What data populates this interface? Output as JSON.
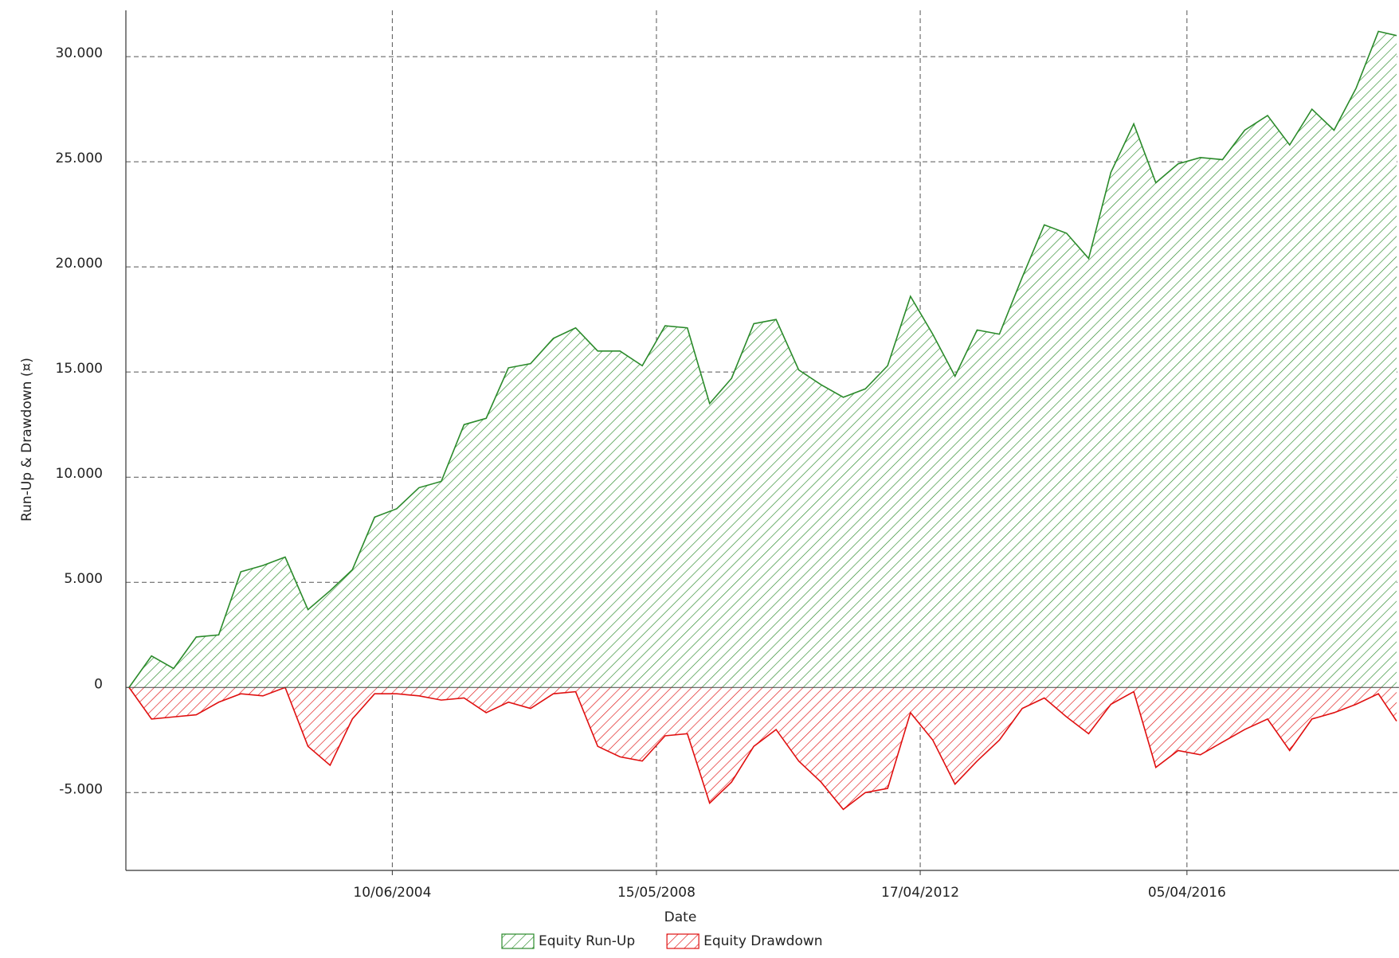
{
  "chart_data": {
    "type": "area",
    "x_label": "Date",
    "y_label": "Run-Up & Drawdown (¤)",
    "x": [
      "11/07/2000",
      "10/11/2000",
      "10/03/2001",
      "11/07/2001",
      "10/11/2001",
      "10/03/2002",
      "08/07/2002",
      "06/11/2002",
      "10/03/2003",
      "08/07/2003",
      "06/11/2003",
      "06/03/2004",
      "04/07/2004",
      "02/11/2004",
      "03/03/2005",
      "05/07/2005",
      "02/11/2005",
      "03/03/2006",
      "01/07/2006",
      "02/11/2006",
      "03/03/2007",
      "01/07/2007",
      "30/10/2007",
      "28/02/2008",
      "01/07/2008",
      "30/10/2008",
      "28/02/2009",
      "27/06/2009",
      "26/10/2009",
      "24/02/2010",
      "27/06/2010",
      "26/10/2010",
      "24/02/2011",
      "24/06/2011",
      "23/10/2011",
      "24/02/2012",
      "24/06/2012",
      "23/10/2012",
      "20/02/2013",
      "21/06/2013",
      "23/10/2013",
      "20/02/2014",
      "21/06/2014",
      "19/10/2014",
      "17/02/2015",
      "21/06/2015",
      "19/10/2015",
      "17/02/2016",
      "17/06/2016",
      "15/10/2016",
      "13/02/2017",
      "17/06/2017",
      "15/10/2017",
      "13/02/2018",
      "13/06/2018",
      "11/10/2018",
      "09/02/2019",
      "19/05/2019"
    ],
    "series": [
      {
        "name": "Equity Run-Up",
        "color": "#2a8a2a",
        "values": [
          0,
          1500,
          900,
          2400,
          2500,
          5500,
          5800,
          6200,
          3700,
          4600,
          5600,
          8100,
          8500,
          9500,
          9800,
          12500,
          12800,
          15200,
          15400,
          16600,
          17100,
          16000,
          16000,
          15300,
          17200,
          17100,
          13500,
          14700,
          17300,
          17500,
          15100,
          14400,
          13800,
          14200,
          15300,
          18600,
          16800,
          14800,
          17000,
          16800,
          19500,
          22000,
          21600,
          20400,
          24500,
          26800,
          24000,
          24900,
          25200,
          25100,
          26500,
          27200,
          25800,
          27500,
          26500,
          28500,
          31200,
          31000
        ]
      },
      {
        "name": "Equity Drawdown",
        "color": "#e01010",
        "values": [
          0,
          -1500,
          -1400,
          -1300,
          -700,
          -300,
          -400,
          0,
          -2800,
          -3700,
          -1500,
          -300,
          -300,
          -400,
          -600,
          -500,
          -1200,
          -700,
          -1000,
          -300,
          -200,
          -2800,
          -3300,
          -3500,
          -2300,
          -2200,
          -5500,
          -4500,
          -2800,
          -2000,
          -3500,
          -4500,
          -5800,
          -5000,
          -4800,
          -1200,
          -2500,
          -4600,
          -3500,
          -2500,
          -1000,
          -500,
          -1400,
          -2200,
          -800,
          -200,
          -3800,
          -3000,
          -3200,
          -2600,
          -2000,
          -1500,
          -3000,
          -1500,
          -1200,
          -800,
          -300,
          -1600
        ]
      }
    ],
    "xlim": [
      "11/07/2000",
      "01/06/2019"
    ],
    "xticks": [
      "10/06/2004",
      "15/05/2008",
      "17/04/2012",
      "05/04/2016"
    ],
    "ylim": [
      -8700,
      32200
    ],
    "yticks": [
      {
        "value": -5000,
        "label": "-5.000"
      },
      0,
      {
        "value": 5000,
        "label": "5.000"
      },
      {
        "value": 10000,
        "label": "10.000"
      },
      {
        "value": 15000,
        "label": "15.000"
      },
      {
        "value": 20000,
        "label": "20.000"
      },
      {
        "value": 25000,
        "label": "25.000"
      },
      {
        "value": 30000,
        "label": "30.000"
      }
    ],
    "grid": true,
    "legend": "bottom"
  }
}
